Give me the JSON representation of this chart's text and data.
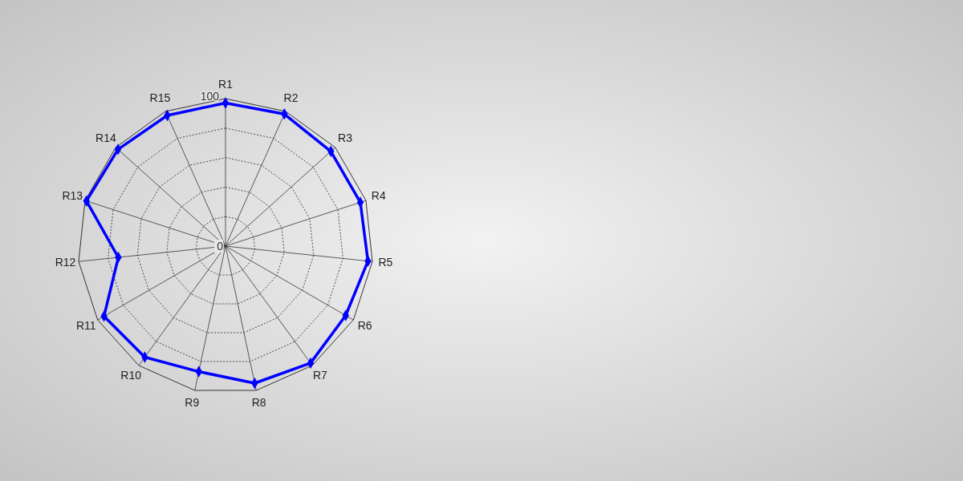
{
  "chart_data": {
    "type": "radar",
    "categories": [
      "R1",
      "R2",
      "R3",
      "R4",
      "R5",
      "R6",
      "R7",
      "R8",
      "R9",
      "R10",
      "R11",
      "R12",
      "R13",
      "R14",
      "R15"
    ],
    "series": [
      {
        "color": "#0000ff",
        "values": [
          97,
          98,
          96,
          96,
          97,
          94,
          98,
          95,
          87,
          93,
          95,
          73,
          99,
          98,
          97
        ]
      }
    ],
    "ylim": [
      0,
      100
    ],
    "yticks": [
      0,
      100
    ],
    "grid": true,
    "marker": "diamond",
    "line_style": "solid"
  }
}
